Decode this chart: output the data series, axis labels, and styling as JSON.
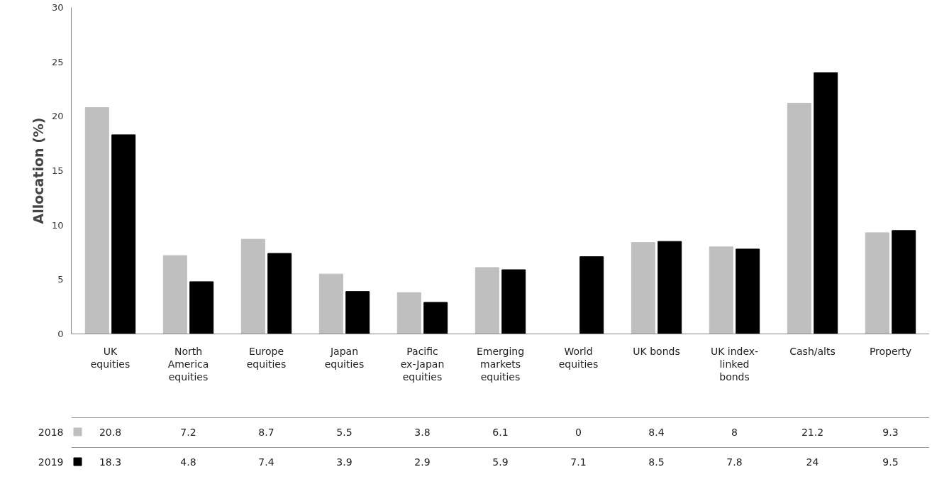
{
  "chart_data": {
    "type": "bar",
    "ylabel": "Allocation (%)",
    "categories": [
      "UK equities",
      "North America equities",
      "Europe equities",
      "Japan equities",
      "Pacific ex-Japan equities",
      "Emerging markets equities",
      "World equities",
      "UK bonds",
      "UK index-linked bonds",
      "Cash/alts",
      "Property"
    ],
    "series": [
      {
        "name": "2018",
        "color": "#bfbfbf",
        "values": [
          20.8,
          7.2,
          8.7,
          5.5,
          3.8,
          6.1,
          0,
          8.4,
          8,
          21.2,
          9.3
        ]
      },
      {
        "name": "2019",
        "color": "#000000",
        "values": [
          18.3,
          4.8,
          7.4,
          3.9,
          2.9,
          5.9,
          7.1,
          8.5,
          7.8,
          24,
          9.5
        ]
      }
    ],
    "ylim": [
      0,
      30
    ],
    "yticks": [
      0,
      5,
      10,
      15,
      20,
      25,
      30
    ],
    "grid": false,
    "legend": "bottom",
    "data_labels": true
  }
}
